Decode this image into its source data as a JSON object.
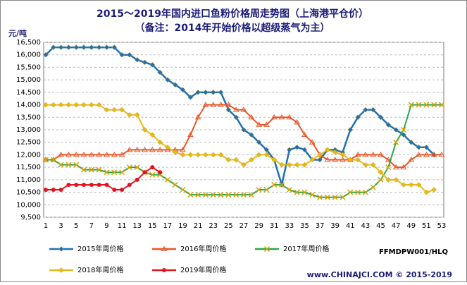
{
  "chart_data": {
    "type": "line",
    "title": "2015～2019年国内进口鱼粉价格周走势图（上海港平仓价）",
    "subtitle": "（备注：2014年开始价格以超级蒸气为主）",
    "y_label": "元/吨",
    "categories": [
      "1",
      null,
      "3",
      null,
      "5",
      null,
      "7",
      null,
      "9",
      null,
      "11",
      null,
      "13",
      null,
      "15",
      null,
      "17",
      null,
      "19",
      null,
      "21",
      null,
      "23",
      null,
      "25",
      null,
      "27",
      null,
      "29",
      null,
      "31",
      null,
      "33",
      null,
      "35",
      null,
      "37",
      null,
      "39",
      null,
      "41",
      null,
      "43",
      null,
      "45",
      null,
      "47",
      null,
      "49",
      null,
      "51",
      null,
      "53"
    ],
    "ylim": [
      9500,
      16500
    ],
    "yticks": [
      {
        "value": 9500,
        "label": "9,500"
      },
      {
        "value": 10000,
        "label": "10,000"
      },
      {
        "value": 10500,
        "label": "10,500"
      },
      {
        "value": 11000,
        "label": "11,000"
      },
      {
        "value": 11500,
        "label": "11,500"
      },
      {
        "value": 12000,
        "label": "12,000"
      },
      {
        "value": 12500,
        "label": "12,500"
      },
      {
        "value": 13000,
        "label": "13,000"
      },
      {
        "value": 13500,
        "label": "13,500"
      },
      {
        "value": 14000,
        "label": "14,000"
      },
      {
        "value": 14500,
        "label": "14,500"
      },
      {
        "value": 15000,
        "label": "15,000"
      },
      {
        "value": 15500,
        "label": "15,500"
      },
      {
        "value": 16000,
        "label": "16,000"
      },
      {
        "value": 16500,
        "label": "16,500"
      }
    ],
    "grid": true,
    "series": [
      {
        "name": "2015年周价格",
        "color": "#1f6fb4",
        "marker": "diamond",
        "values": [
          16000,
          16300,
          16300,
          16300,
          16300,
          16300,
          16300,
          16300,
          16300,
          16300,
          16000,
          16000,
          15800,
          15700,
          15600,
          15300,
          15000,
          14800,
          14600,
          14300,
          14500,
          14500,
          14500,
          14500,
          13800,
          13500,
          13000,
          12800,
          12500,
          12200,
          11800,
          10800,
          12200,
          12300,
          12200,
          11800,
          11800,
          12200,
          12200,
          12100,
          13000,
          13500,
          13800,
          13800,
          13500,
          13200,
          13000,
          12800,
          12500,
          12300,
          12300,
          12000,
          null
        ]
      },
      {
        "name": "2016年周价格",
        "color": "#e8562a",
        "marker": "triangle",
        "values": [
          11800,
          11800,
          12000,
          12000,
          12000,
          12000,
          12000,
          12000,
          12000,
          12000,
          12000,
          12200,
          12200,
          12200,
          12200,
          12200,
          12200,
          12200,
          12200,
          12800,
          13500,
          14000,
          14000,
          14000,
          14000,
          13800,
          13800,
          13500,
          13200,
          13200,
          13500,
          13500,
          13500,
          13300,
          12800,
          12500,
          12000,
          11800,
          11800,
          11800,
          11800,
          12000,
          12000,
          12000,
          12000,
          11800,
          11500,
          11500,
          11800,
          12000,
          12000,
          12000,
          12000
        ]
      },
      {
        "name": "2017年周价格",
        "color": "#2aa84a",
        "marker": "cross",
        "values": [
          11800,
          11800,
          11600,
          11600,
          11600,
          11400,
          11400,
          11400,
          11300,
          11300,
          11300,
          11500,
          11500,
          11300,
          11200,
          11200,
          11000,
          10800,
          10600,
          10400,
          10400,
          10400,
          10400,
          10400,
          10400,
          10400,
          10400,
          10400,
          10600,
          10600,
          10800,
          10800,
          10600,
          10500,
          10500,
          10400,
          10300,
          10300,
          10300,
          10300,
          10500,
          10500,
          10500,
          10700,
          11000,
          11500,
          12500,
          13000,
          14000,
          14000,
          14000,
          14000,
          14000
        ]
      },
      {
        "name": "2018年周价格",
        "color": "#e8b818",
        "marker": "diamond",
        "values": [
          14000,
          14000,
          14000,
          14000,
          14000,
          14000,
          14000,
          14000,
          13800,
          13800,
          13800,
          13600,
          13600,
          13000,
          12800,
          12500,
          12300,
          12100,
          12000,
          12000,
          12000,
          12000,
          12000,
          12000,
          11800,
          11800,
          11600,
          11800,
          12000,
          12000,
          11800,
          11600,
          11600,
          11600,
          11600,
          11800,
          12000,
          12200,
          12100,
          12000,
          11800,
          11800,
          11600,
          11600,
          11300,
          11000,
          11000,
          10800,
          10800,
          10800,
          10500,
          10600,
          null
        ]
      },
      {
        "name": "2019年周价格",
        "color": "#e0141e",
        "marker": "circle",
        "values": [
          10600,
          10600,
          10600,
          10800,
          10800,
          10800,
          10800,
          10800,
          10800,
          10600,
          10600,
          10800,
          11000,
          11300,
          11500,
          11300,
          null,
          null,
          null,
          null,
          null,
          null,
          null,
          null,
          null,
          null,
          null,
          null,
          null,
          null,
          null,
          null,
          null,
          null,
          null,
          null,
          null,
          null,
          null,
          null,
          null,
          null,
          null,
          null,
          null,
          null,
          null,
          null,
          null,
          null,
          null,
          null,
          null
        ]
      }
    ],
    "code": "FFMDPW001/HLQ",
    "footer": "www.CHINAJCI.COM © 2015-2019"
  }
}
